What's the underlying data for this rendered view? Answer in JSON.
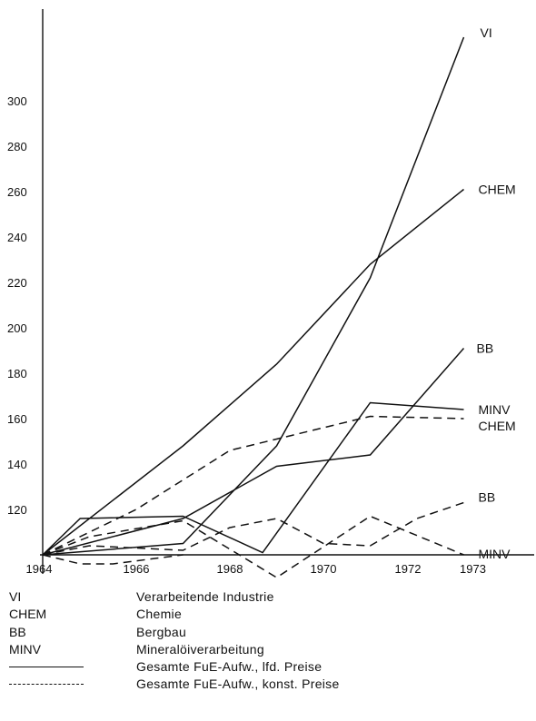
{
  "chart_data": {
    "type": "line",
    "x_ticks": [
      "1964",
      "1966",
      "1968",
      "1970",
      "1972",
      "1973"
    ],
    "y_ticks": [
      "120",
      "140",
      "160",
      "180",
      "200",
      "220",
      "240",
      "260",
      "280",
      "300"
    ],
    "ylim": [
      100,
      330
    ],
    "grid": false,
    "series": [
      {
        "name": "VI",
        "label": "VI",
        "style": "solid",
        "x": [
          1964,
          1967,
          1969,
          1971,
          1973
        ],
        "y": [
          100,
          105,
          148,
          222,
          328
        ]
      },
      {
        "name": "CHEM",
        "label": "CHEM",
        "style": "solid",
        "x": [
          1964,
          1967,
          1969,
          1971,
          1973
        ],
        "y": [
          100,
          148,
          184,
          228,
          261
        ]
      },
      {
        "name": "BB",
        "label": "BB",
        "style": "solid",
        "x": [
          1964,
          1967,
          1969,
          1971,
          1973
        ],
        "y": [
          100,
          116,
          139,
          144,
          191
        ]
      },
      {
        "name": "MINV",
        "label": "MINV",
        "style": "solid",
        "x": [
          1964,
          1964.8,
          1967,
          1968.7,
          1971,
          1973
        ],
        "y": [
          100,
          116,
          117,
          101,
          167,
          164
        ]
      },
      {
        "name": "CHEM",
        "label": "CHEM",
        "style": "dashed",
        "x": [
          1964,
          1966,
          1968,
          1969,
          1971,
          1973
        ],
        "y": [
          100,
          120,
          146,
          151,
          161,
          160
        ]
      },
      {
        "name": "BB",
        "label": "BB",
        "style": "dashed",
        "x": [
          1964,
          1965,
          1967,
          1968,
          1969,
          1970,
          1971,
          1972,
          1973
        ],
        "y": [
          100,
          104,
          102,
          112,
          116,
          105,
          104,
          116,
          123
        ]
      },
      {
        "name": "MINV",
        "label": "MINV",
        "style": "dashed",
        "x": [
          1964,
          1965,
          1967,
          1969,
          1971,
          1973
        ],
        "y": [
          100,
          108,
          115,
          90,
          117,
          100
        ]
      },
      {
        "name": "",
        "label": "",
        "style": "dashed",
        "x": [
          1964,
          1964.8,
          1965.5,
          1967
        ],
        "y": [
          100,
          96,
          96,
          100
        ]
      }
    ]
  },
  "legend": [
    {
      "key": "VI",
      "text": "Verarbeitende Industrie"
    },
    {
      "key": "CHEM",
      "text": "Chemie"
    },
    {
      "key": "BB",
      "text": "Bergbau"
    },
    {
      "key": "MINV",
      "text": "Mineralöiverarbeitung"
    },
    {
      "key": "",
      "line": "solid",
      "text": "Gesamte FuE-Aufw., lfd. Preise"
    },
    {
      "key": "",
      "line": "dashed",
      "text": "Gesamte FuE-Aufw., konst. Preise"
    }
  ]
}
